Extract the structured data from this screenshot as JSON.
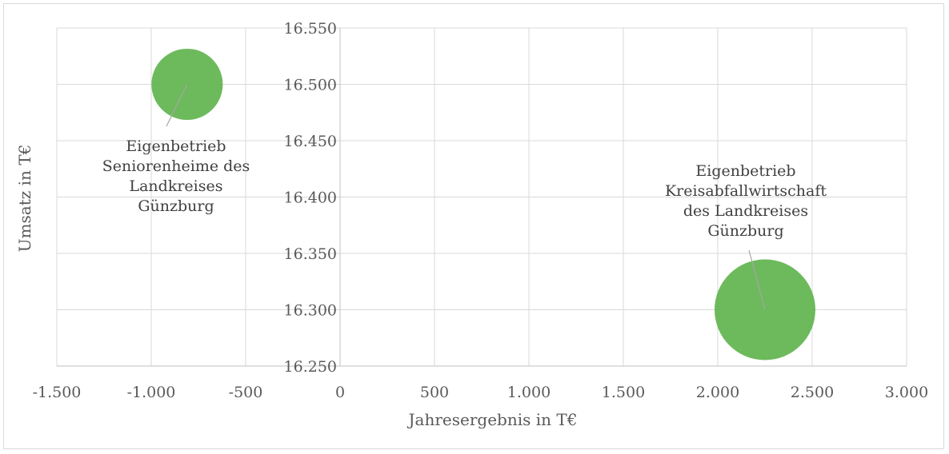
{
  "chart_data": {
    "type": "bubble",
    "title": "",
    "xlabel": "Jahresergebnis in T€",
    "ylabel": "Umsatz in T€",
    "xlim": [
      -1500,
      3000
    ],
    "ylim": [
      16250,
      16550
    ],
    "x_ticks": [
      -1500,
      -1000,
      -500,
      0,
      500,
      1000,
      1500,
      2000,
      2500,
      3000
    ],
    "y_ticks": [
      16250,
      16300,
      16350,
      16400,
      16450,
      16500,
      16550
    ],
    "x_tick_labels": [
      "-1.500",
      "-1.000",
      "-500",
      "0",
      "500",
      "1.000",
      "1.500",
      "2.000",
      "2.500",
      "3.000"
    ],
    "y_tick_labels": [
      "16.250",
      "16.300",
      "16.350",
      "16.400",
      "16.450",
      "16.500",
      "16.550"
    ],
    "grid": true,
    "bubble_color": "#5db34a",
    "points": [
      {
        "x": -810,
        "y": 16500,
        "size": 1,
        "label": [
          "Eigenbetrieb",
          "Seniorenheime des",
          "Landkreises",
          "Günzburg"
        ]
      },
      {
        "x": 2250,
        "y": 16300,
        "size": 2,
        "label": [
          "Eigenbetrieb",
          "Kreisabfallwirtschaft",
          "des Landkreises",
          "Günzburg"
        ]
      }
    ]
  }
}
